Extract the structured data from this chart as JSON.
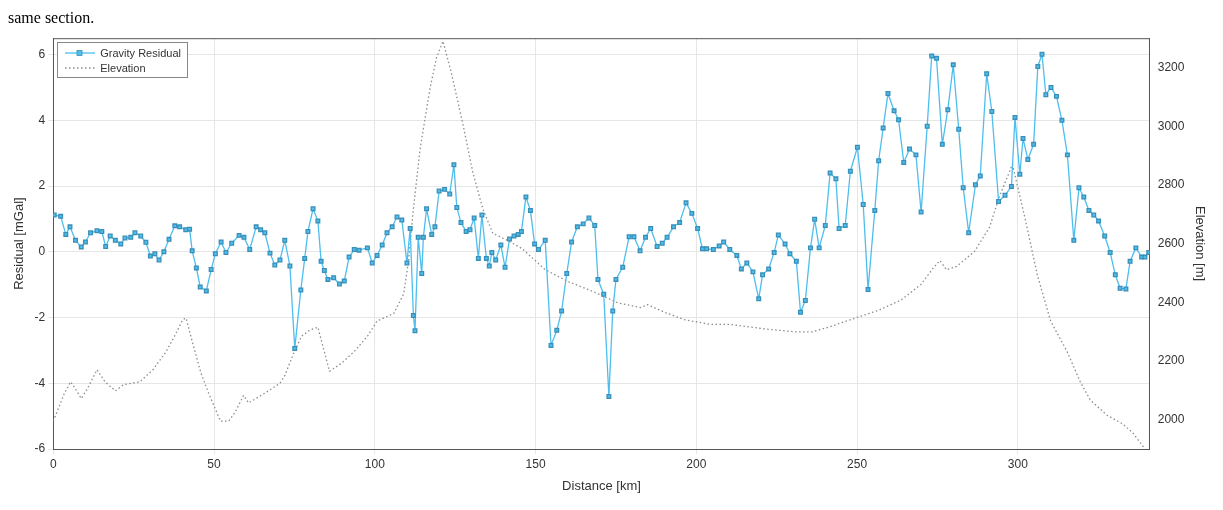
{
  "chart_data": {
    "type": "line",
    "xlabel": "Distance [km]",
    "ylabel": "Residual [mGal]",
    "y2label": "Elevation [m]",
    "annotations": [
      "same section."
    ],
    "xlim": [
      0,
      341
    ],
    "xticks": [
      0,
      50,
      100,
      150,
      200,
      250,
      300
    ],
    "ylim": [
      -6,
      6.5
    ],
    "yticks": [
      -6,
      -4,
      -2,
      0,
      2,
      4,
      6
    ],
    "y2lim": [
      1900,
      3300
    ],
    "y2ticks": [
      2000,
      2200,
      2400,
      2600,
      2800,
      3000,
      3200
    ],
    "grid": true,
    "legend": "top left",
    "series": [
      {
        "name": "Gravity Residual",
        "color": "#4dbeee",
        "marker": "square",
        "line_style": "solid",
        "x": [
          0.3,
          2.3,
          3.9,
          5.2,
          6.9,
          8.7,
          10,
          11.6,
          13.6,
          15.1,
          16.3,
          17.7,
          19.3,
          21,
          22.3,
          24.1,
          25.4,
          27.2,
          28.8,
          30.2,
          31.6,
          32.9,
          34.4,
          36,
          37.8,
          39.3,
          41.2,
          42.4,
          43.2,
          44.5,
          45.7,
          47.6,
          49.1,
          50.4,
          52.2,
          53.7,
          55.5,
          57.8,
          59.3,
          61.1,
          63.1,
          64.5,
          65.8,
          67.4,
          68.9,
          70.5,
          72,
          73.6,
          75.1,
          77,
          78.2,
          79.2,
          80.8,
          82.3,
          83.3,
          84.3,
          85.4,
          87.2,
          89,
          90.5,
          92,
          93.6,
          95.1,
          97.7,
          99.2,
          100.7,
          102.3,
          103.8,
          105.4,
          106.9,
          108.4,
          110,
          111,
          112,
          112.5,
          113.5,
          114.6,
          115.1,
          116.1,
          117.7,
          118.7,
          120,
          121.7,
          123.3,
          124.6,
          125.5,
          126.8,
          128.4,
          129.6,
          130.9,
          132.2,
          133.3,
          134.7,
          135.6,
          136.4,
          137.6,
          139.2,
          140.5,
          141.9,
          143.3,
          144.6,
          145.6,
          147,
          148.4,
          149.7,
          150.9,
          153,
          154.8,
          156.6,
          158.1,
          159.7,
          161.2,
          163,
          164.8,
          166.6,
          168.4,
          169.4,
          171.2,
          172.8,
          174,
          175,
          177.1,
          179.1,
          180.6,
          182.5,
          184.2,
          185.8,
          187.8,
          189.4,
          190.9,
          192.9,
          194.8,
          196.8,
          198.6,
          200.4,
          201.9,
          203.2,
          205.3,
          207.1,
          208.5,
          210.4,
          212.6,
          214,
          215.7,
          217.6,
          219.4,
          220.6,
          222.5,
          224.2,
          225.5,
          227.6,
          229.1,
          231.1,
          232.4,
          233.9,
          235.5,
          236.8,
          238.2,
          240.1,
          241.6,
          243.4,
          244.4,
          246.3,
          247.9,
          250.1,
          251.9,
          253.4,
          255.5,
          256.7,
          258.1,
          259.6,
          261.5,
          262.9,
          264.5,
          266.3,
          268.3,
          269.9,
          271.8,
          273.2,
          274.7,
          276.5,
          278.2,
          279.9,
          281.6,
          283,
          284.7,
          286.8,
          288.3,
          290.3,
          291.9,
          294,
          296,
          298,
          299.1,
          300.6,
          301.6,
          303.1,
          304.9,
          306.2,
          307.5,
          308.7,
          310.3,
          312,
          313.7,
          315.4,
          317.4,
          319,
          320.5,
          322.1,
          323.6,
          325.1,
          327,
          328.7,
          330.3,
          331.8,
          333.6,
          334.9,
          336.7,
          338.5,
          339.5,
          340.7
        ],
        "values": [
          1.12,
          1.08,
          0.53,
          0.76,
          0.35,
          0.15,
          0.3,
          0.58,
          0.64,
          0.62,
          0.16,
          0.48,
          0.35,
          0.24,
          0.42,
          0.44,
          0.58,
          0.48,
          0.29,
          -0.13,
          -0.06,
          -0.25,
          0,
          0.38,
          0.79,
          0.76,
          0.67,
          0.69,
          0.03,
          -0.49,
          -1.07,
          -1.19,
          -0.54,
          -0.06,
          0.3,
          -0.02,
          0.26,
          0.5,
          0.44,
          0.07,
          0.76,
          0.67,
          0.58,
          -0.04,
          -0.4,
          -0.25,
          0.35,
          -0.43,
          -2.94,
          -1.16,
          -0.2,
          0.62,
          1.31,
          0.94,
          -0.29,
          -0.57,
          -0.84,
          -0.79,
          -0.98,
          -0.89,
          -0.16,
          0.07,
          0.05,
          0.12,
          -0.34,
          -0.11,
          0.21,
          0.58,
          0.76,
          1.06,
          0.97,
          -0.34,
          0.71,
          -1.94,
          -2.4,
          0.44,
          -0.66,
          0.44,
          1.31,
          0.53,
          0.76,
          1.85,
          1.9,
          1.76,
          2.65,
          1.35,
          0.89,
          0.62,
          0.67,
          1.03,
          -0.2,
          1.12,
          -0.2,
          -0.43,
          -0.02,
          -0.25,
          0.21,
          -0.47,
          0.39,
          0.48,
          0.53,
          0.62,
          1.67,
          1.26,
          0.24,
          0.07,
          0.35,
          -2.85,
          -2.39,
          -1.8,
          -0.66,
          0.3,
          0.76,
          0.85,
          1.03,
          0.8,
          -0.84,
          -1.29,
          -4.4,
          -1.8,
          -0.84,
          -0.47,
          0.46,
          0.46,
          0.03,
          0.44,
          0.71,
          0.16,
          0.26,
          0.44,
          0.76,
          0.89,
          1.49,
          1.17,
          0.71,
          0.09,
          0.09,
          0.07,
          0.18,
          0.3,
          0.07,
          -0.11,
          -0.52,
          -0.34,
          -0.61,
          -1.43,
          -0.7,
          -0.52,
          -0.02,
          0.51,
          0.24,
          -0.06,
          -0.29,
          -1.84,
          -1.48,
          0.12,
          0.99,
          0.12,
          0.8,
          2.4,
          2.22,
          0.71,
          0.8,
          2.45,
          3.18,
          1.44,
          -1.15,
          1.26,
          2.77,
          3.77,
          4.82,
          4.29,
          4.02,
          2.72,
          3.13,
          2.95,
          1.21,
          3.82,
          5.96,
          5.89,
          3.27,
          4.32,
          5.69,
          3.73,
          1.95,
          0.58,
          2.04,
          2.31,
          5.42,
          4.27,
          1.53,
          1.72,
          1.99,
          4.09,
          2.36,
          3.45,
          2.81,
          3.27,
          5.64,
          6.01,
          4.78,
          5,
          4.73,
          4,
          2.95,
          0.35,
          1.95,
          1.67,
          1.26,
          1.12,
          0.94,
          0.48,
          -0.02,
          -0.7,
          -1.11,
          -1.13,
          -0.29,
          0.12,
          -0.16,
          -0.16,
          -0.02
        ]
      },
      {
        "name": "Elevation",
        "color": "#8c8c8c",
        "axis": "y2",
        "marker": "none",
        "line_style": "dotted",
        "x": [
          0,
          3.4,
          5.4,
          7,
          8.7,
          10.5,
          13.6,
          16.1,
          19.3,
          21.8,
          24.4,
          26.9,
          31,
          35.1,
          37.7,
          40.3,
          41.3,
          43.3,
          45.9,
          48.4,
          52,
          54.6,
          56.6,
          59.2,
          60.7,
          63.8,
          66.9,
          70.5,
          72,
          74.6,
          77.2,
          79.7,
          82.3,
          85.9,
          89.5,
          93.6,
          97.7,
          100.7,
          105.9,
          109,
          110.5,
          112,
          114.1,
          117.2,
          119.2,
          121.2,
          123.8,
          127.4,
          130.5,
          133.6,
          136.7,
          140.7,
          145.8,
          153,
          160.2,
          167.4,
          175.6,
          182.7,
          184.8,
          189.9,
          196.1,
          204.3,
          210.4,
          220.6,
          230.9,
          236,
          241.1,
          249.3,
          256.5,
          263.7,
          269.8,
          273.9,
          275.8,
          277.8,
          280.9,
          286.5,
          291.2,
          294.2,
          298.3,
          302,
          306.1,
          310.2,
          315.3,
          319.4,
          322.5,
          327.6,
          332.7,
          335.8,
          339.4
        ],
        "values": [
          1995,
          2088,
          2129,
          2103,
          2072,
          2103,
          2170,
          2129,
          2098,
          2119,
          2124,
          2129,
          2170,
          2232,
          2284,
          2341,
          2346,
          2263,
          2160,
          2088,
          1995,
          1995,
          2026,
          2083,
          2057,
          2077,
          2098,
          2124,
          2150,
          2222,
          2284,
          2305,
          2315,
          2165,
          2191,
          2232,
          2284,
          2336,
          2362,
          2429,
          2543,
          2718,
          2924,
          3131,
          3234,
          3290,
          3182,
          3007,
          2842,
          2718,
          2635,
          2614,
          2583,
          2511,
          2470,
          2439,
          2398,
          2382,
          2392,
          2367,
          2341,
          2325,
          2325,
          2310,
          2299,
          2299,
          2315,
          2346,
          2372,
          2408,
          2460,
          2520,
          2542,
          2511,
          2522,
          2573,
          2656,
          2759,
          2870,
          2697,
          2491,
          2336,
          2232,
          2129,
          2067,
          2016,
          1985,
          1954,
          1902
        ]
      }
    ]
  }
}
